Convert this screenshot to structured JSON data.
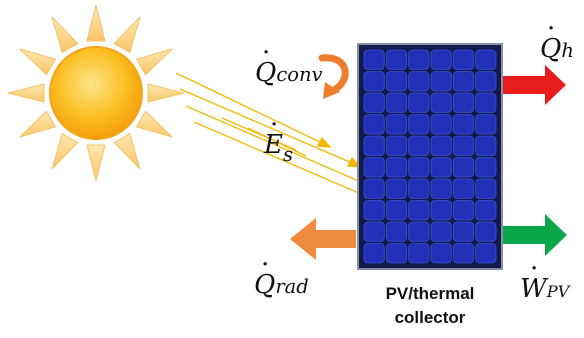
{
  "labels": {
    "q_conv": {
      "symbol": "Q",
      "subscript": "conv"
    },
    "e_s": {
      "symbol": "E",
      "subscript": "s"
    },
    "q_h": {
      "symbol": "Q",
      "subscript": "h"
    },
    "q_rad": {
      "symbol": "Q",
      "subscript": "rad"
    },
    "w_pv": {
      "symbol": "W",
      "subscript": "PV"
    },
    "dot_mark": "·"
  },
  "collector": {
    "line1": "PV/thermal",
    "line2": "collector"
  },
  "colors": {
    "sun_body": "#fbbf24",
    "sun_rays": "#fcd580",
    "solar_beam": "#f5b800",
    "panel_frame": "#111a4a",
    "panel_cells": "#2230b8",
    "heat_out_arrow": "#e81c1c",
    "radiation_arrow": "#f08a3c",
    "power_arrow": "#0aa64a",
    "convection_arrow": "#ef7d2e"
  },
  "icons": [
    "sun-icon",
    "solar-panel-icon",
    "curved-arrow-icon"
  ]
}
